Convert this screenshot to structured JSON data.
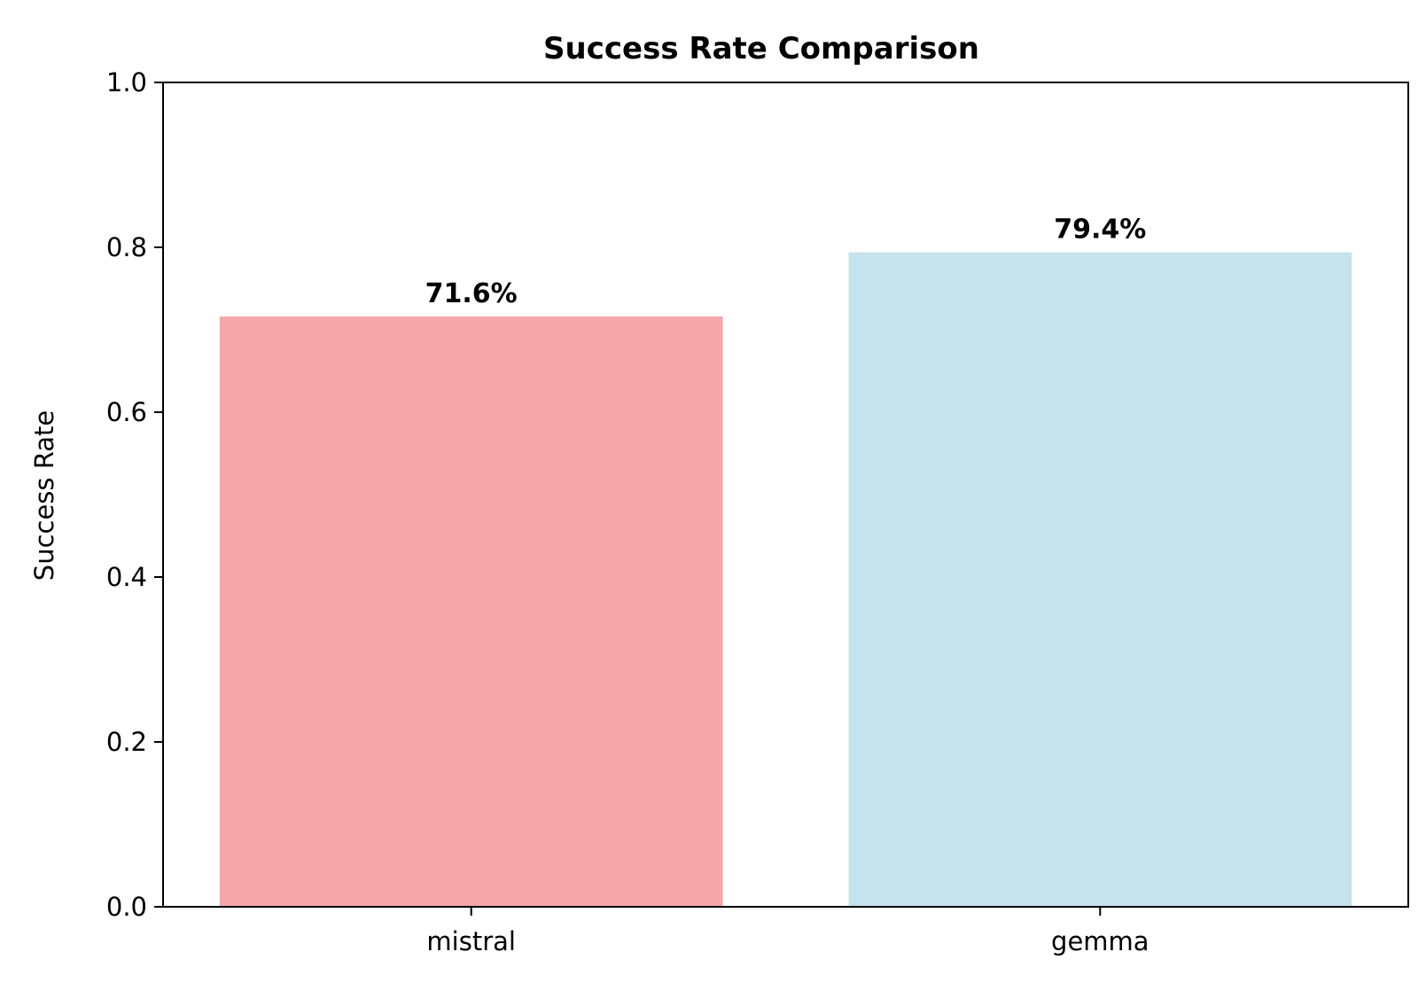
{
  "chart_data": {
    "type": "bar",
    "title": "Success Rate Comparison",
    "xlabel": "",
    "ylabel": "Success Rate",
    "ylim": [
      0,
      1.0
    ],
    "yticks": [
      0.0,
      0.2,
      0.4,
      0.6,
      0.8,
      1.0
    ],
    "ytick_labels": [
      "0.0",
      "0.2",
      "0.4",
      "0.6",
      "0.8",
      "1.0"
    ],
    "categories": [
      "mistral",
      "gemma"
    ],
    "values": [
      0.716,
      0.794
    ],
    "data_labels": [
      "71.6%",
      "79.4%"
    ],
    "colors": [
      "#f4a6a8",
      "#c5e3ec"
    ],
    "grid": false,
    "legend": "none"
  }
}
